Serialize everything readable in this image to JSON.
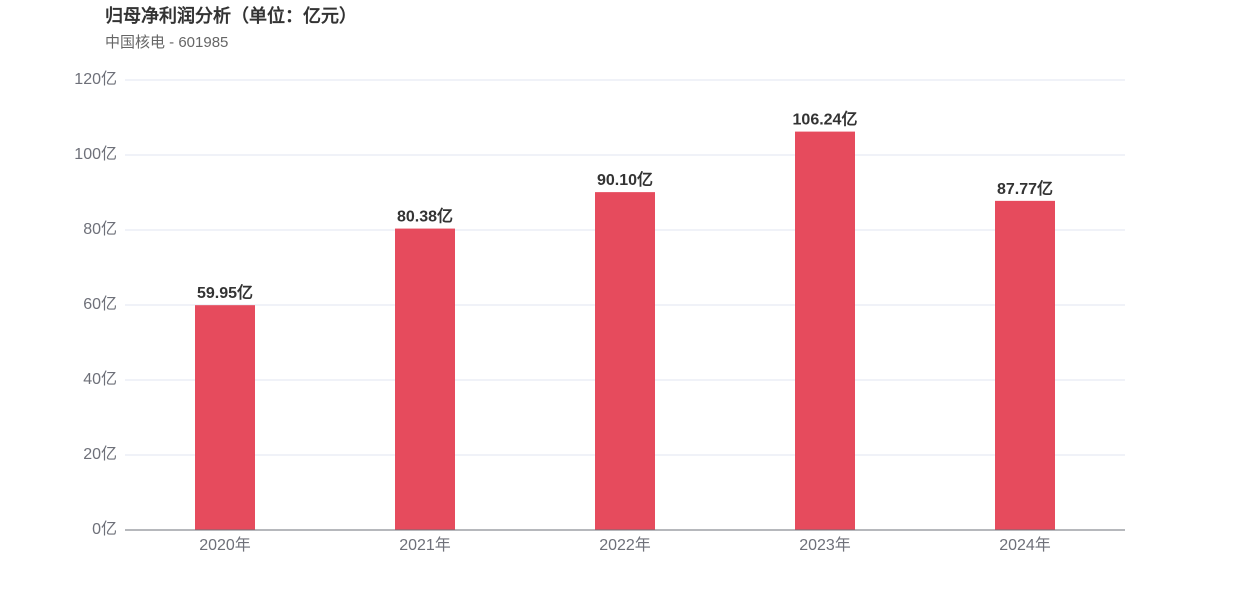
{
  "header": {
    "title": "归母净利润分析（单位：亿元）",
    "subtitle": "中国核电 - 601985"
  },
  "chart_data": {
    "type": "bar",
    "categories": [
      "2020年",
      "2021年",
      "2022年",
      "2023年",
      "2024年"
    ],
    "values": [
      59.95,
      80.38,
      90.1,
      106.24,
      87.77
    ],
    "data_labels": [
      "59.95亿",
      "80.38亿",
      "90.10亿",
      "106.24亿",
      "87.77亿"
    ],
    "ylim": [
      0,
      120
    ],
    "y_ticks": [
      0,
      20,
      40,
      60,
      80,
      100,
      120
    ],
    "y_tick_labels": [
      "0亿",
      "20亿",
      "40亿",
      "60亿",
      "80亿",
      "100亿",
      "120亿"
    ],
    "grid": true,
    "colors": {
      "bar": "#e64b5d",
      "grid": "#e0e6f1",
      "axis": "#6e7079"
    }
  }
}
